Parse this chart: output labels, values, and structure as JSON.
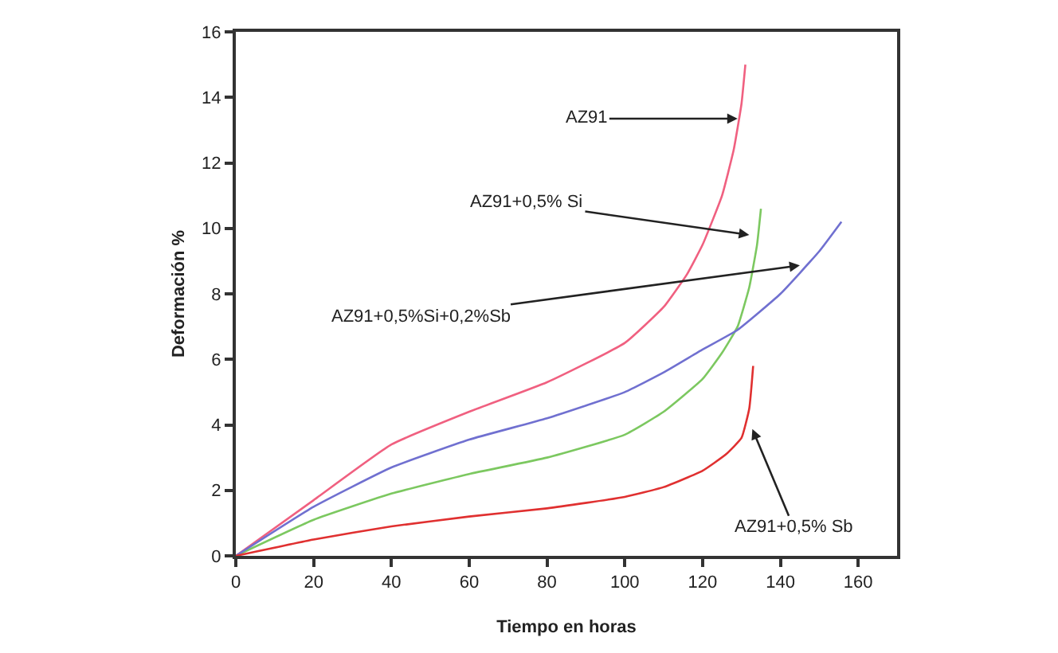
{
  "chart_data": {
    "type": "line",
    "xlabel": "Tiempo en horas",
    "ylabel": "Deformación %",
    "xlim": [
      0,
      170
    ],
    "xticks": [
      0,
      20,
      40,
      60,
      80,
      100,
      120,
      140,
      160
    ],
    "ylim": [
      0,
      16
    ],
    "yticks": [
      0,
      2,
      4,
      6,
      8,
      10,
      12,
      14,
      16
    ],
    "marker": "none",
    "line_style": "solid",
    "series": [
      {
        "color": "#f06080",
        "x": [
          0,
          20,
          40,
          60,
          80,
          100,
          110,
          116,
          120,
          125,
          128,
          130,
          131
        ],
        "values": [
          0,
          1.7,
          3.4,
          4.4,
          5.3,
          6.5,
          7.6,
          8.6,
          9.5,
          11,
          12.4,
          13.8,
          15
        ]
      },
      {
        "color": "#7cc860",
        "x": [
          0,
          20,
          40,
          60,
          80,
          100,
          110,
          120,
          125,
          129,
          132,
          134,
          135
        ],
        "values": [
          0,
          1.1,
          1.9,
          2.5,
          3.0,
          3.7,
          4.4,
          5.4,
          6.2,
          7,
          8.2,
          9.5,
          10.6
        ]
      },
      {
        "color": "#7070d0",
        "x": [
          0,
          20,
          40,
          60,
          80,
          100,
          110,
          120,
          129,
          140,
          150,
          155.7
        ],
        "values": [
          0,
          1.5,
          2.7,
          3.55,
          4.2,
          5.0,
          5.6,
          6.3,
          6.9,
          8.0,
          9.3,
          10.2
        ]
      },
      {
        "color": "#e03030",
        "x": [
          0,
          20,
          40,
          60,
          80,
          100,
          110,
          120,
          126,
          130,
          132,
          133
        ],
        "values": [
          0,
          0.5,
          0.9,
          1.2,
          1.45,
          1.8,
          2.1,
          2.6,
          3.1,
          3.6,
          4.5,
          5.8
        ]
      }
    ],
    "annotations": [
      {
        "text": "AZ91",
        "x": 129,
        "y": 13.35
      },
      {
        "text": "AZ91+0,5% Si",
        "x": 132,
        "y": 9.8
      },
      {
        "text": "AZ91+0,5%Si+0,2%Sb",
        "x": 145,
        "y": 8.87
      },
      {
        "text": "AZ91+0,5% Sb",
        "x": 132.8,
        "y": 3.87
      }
    ]
  }
}
